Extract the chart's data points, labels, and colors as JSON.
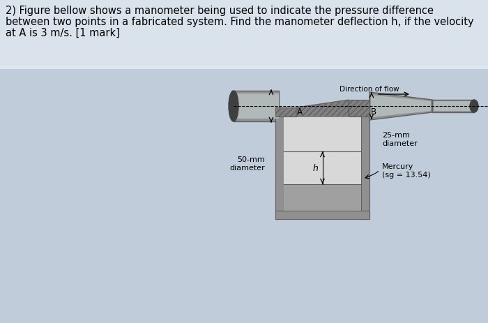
{
  "title_line1": "2) Figure bellow shows a manometer being used to indicate the pressure difference",
  "title_line2": "between two points in a fabricated system. Find the manometer deflection h, if the velocity",
  "title_line3": "at A is 3 m/s. [1 mark]",
  "title_fontsize": 10.5,
  "bg_color": "#c0ccda",
  "label_50mm": "50-mm\ndiameter",
  "label_25mm": "25-mm\ndiameter",
  "label_mercury": "Mercury\n(sg = 13.54)",
  "label_h": "h",
  "label_A": "A",
  "label_B": "B",
  "label_direction": "Direction of flow",
  "font_size_labels": 8.0
}
